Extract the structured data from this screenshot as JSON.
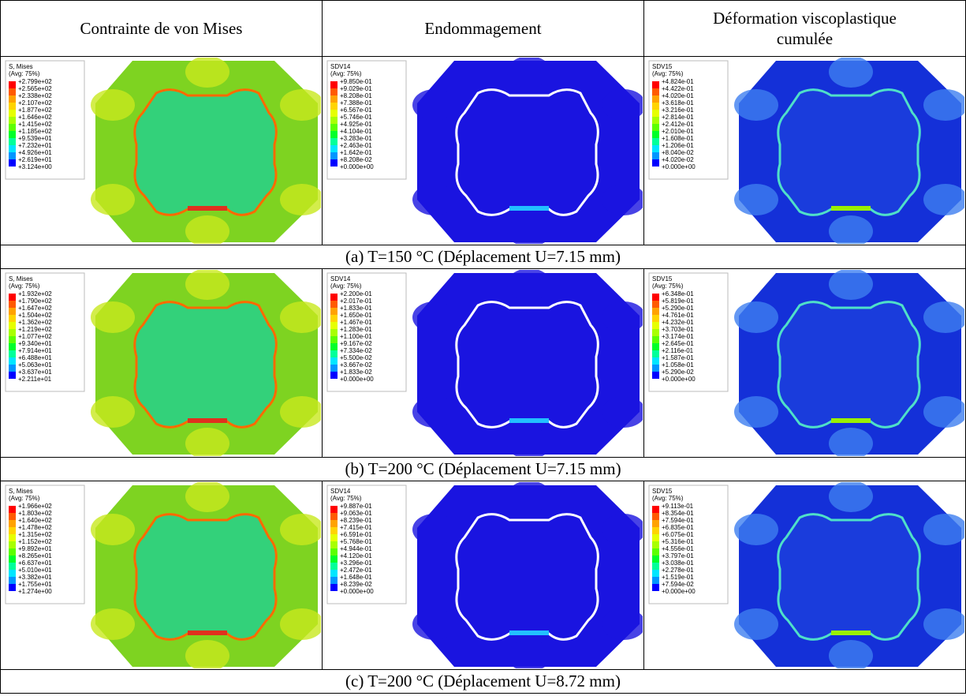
{
  "header": {
    "columns": [
      "Contrainte de von Mises",
      "Endommagement",
      "Déformation viscoplastique cumulée"
    ]
  },
  "rows": [
    {
      "caption": "(a) T=150 °C (Déplacement U=7.15 mm)",
      "panels": [
        {
          "legend_title": "S, Mises",
          "legend_subtitle": "(Avg: 75%)",
          "legend_values": [
            "+2.799e+02",
            "+2.565e+02",
            "+2.338e+02",
            "+2.107e+02",
            "+1.877e+02",
            "+1.646e+02",
            "+1.415e+02",
            "+1.185e+02",
            "+9.539e+01",
            "+7.232e+01",
            "+4.926e+01",
            "+2.619e+01",
            "+3.124e+00"
          ]
        },
        {
          "legend_title": "SDV14",
          "legend_subtitle": "(Avg: 75%)",
          "legend_values": [
            "+9.850e-01",
            "+9.029e-01",
            "+8.208e-01",
            "+7.388e-01",
            "+6.567e-01",
            "+5.746e-01",
            "+4.925e-01",
            "+4.104e-01",
            "+3.283e-01",
            "+2.463e-01",
            "+1.642e-01",
            "+8.208e-02",
            "+0.000e+00"
          ]
        },
        {
          "legend_title": "SDV15",
          "legend_subtitle": "(Avg: 75%)",
          "legend_values": [
            "+4.824e-01",
            "+4.422e-01",
            "+4.020e-01",
            "+3.618e-01",
            "+3.216e-01",
            "+2.814e-01",
            "+2.412e-01",
            "+2.010e-01",
            "+1.608e-01",
            "+1.206e-01",
            "+8.040e-02",
            "+4.020e-02",
            "+0.000e+00"
          ]
        }
      ]
    },
    {
      "caption": "(b) T=200 °C (Déplacement U=7.15 mm)",
      "panels": [
        {
          "legend_title": "S, Mises",
          "legend_subtitle": "(Avg: 75%)",
          "legend_values": [
            "+1.932e+02",
            "+1.790e+02",
            "+1.647e+02",
            "+1.504e+02",
            "+1.362e+02",
            "+1.219e+02",
            "+1.077e+02",
            "+9.340e+01",
            "+7.914e+01",
            "+6.488e+01",
            "+5.063e+01",
            "+3.637e+01",
            "+2.211e+01"
          ]
        },
        {
          "legend_title": "SDV14",
          "legend_subtitle": "(Avg: 75%)",
          "legend_values": [
            "+2.200e-01",
            "+2.017e-01",
            "+1.833e-01",
            "+1.650e-01",
            "+1.467e-01",
            "+1.283e-01",
            "+1.100e-01",
            "+9.167e-02",
            "+7.334e-02",
            "+5.500e-02",
            "+3.667e-02",
            "+1.833e-02",
            "+0.000e+00"
          ]
        },
        {
          "legend_title": "SDV15",
          "legend_subtitle": "(Avg: 75%)",
          "legend_values": [
            "+6.348e-01",
            "+5.819e-01",
            "+5.290e-01",
            "+4.761e-01",
            "+4.232e-01",
            "+3.703e-01",
            "+3.174e-01",
            "+2.645e-01",
            "+2.116e-01",
            "+1.587e-01",
            "+1.058e-01",
            "+5.290e-02",
            "+0.000e+00"
          ]
        }
      ]
    },
    {
      "caption": "(c) T=200 °C (Déplacement U=8.72 mm)",
      "panels": [
        {
          "legend_title": "S, Mises",
          "legend_subtitle": "(Avg: 75%)",
          "legend_values": [
            "+1.966e+02",
            "+1.803e+02",
            "+1.640e+02",
            "+1.478e+02",
            "+1.315e+02",
            "+1.152e+02",
            "+9.892e+01",
            "+8.265e+01",
            "+6.637e+01",
            "+5.010e+01",
            "+3.382e+01",
            "+1.755e+01",
            "+1.274e+00"
          ]
        },
        {
          "legend_title": "SDV14",
          "legend_subtitle": "(Avg: 75%)",
          "legend_values": [
            "+9.887e-01",
            "+9.063e-01",
            "+8.239e-01",
            "+7.415e-01",
            "+6.591e-01",
            "+5.768e-01",
            "+4.944e-01",
            "+4.120e-01",
            "+3.296e-01",
            "+2.472e-01",
            "+1.648e-01",
            "+8.239e-02",
            "+0.000e+00"
          ]
        },
        {
          "legend_title": "SDV15",
          "legend_subtitle": "(Avg: 75%)",
          "legend_values": [
            "+9.113e-01",
            "+8.354e-01",
            "+7.594e-01",
            "+6.835e-01",
            "+6.075e-01",
            "+5.316e-01",
            "+4.556e-01",
            "+3.797e-01",
            "+3.038e-01",
            "+2.278e-01",
            "+1.519e-01",
            "+7.594e-02",
            "+0.000e+00"
          ]
        }
      ]
    }
  ]
}
